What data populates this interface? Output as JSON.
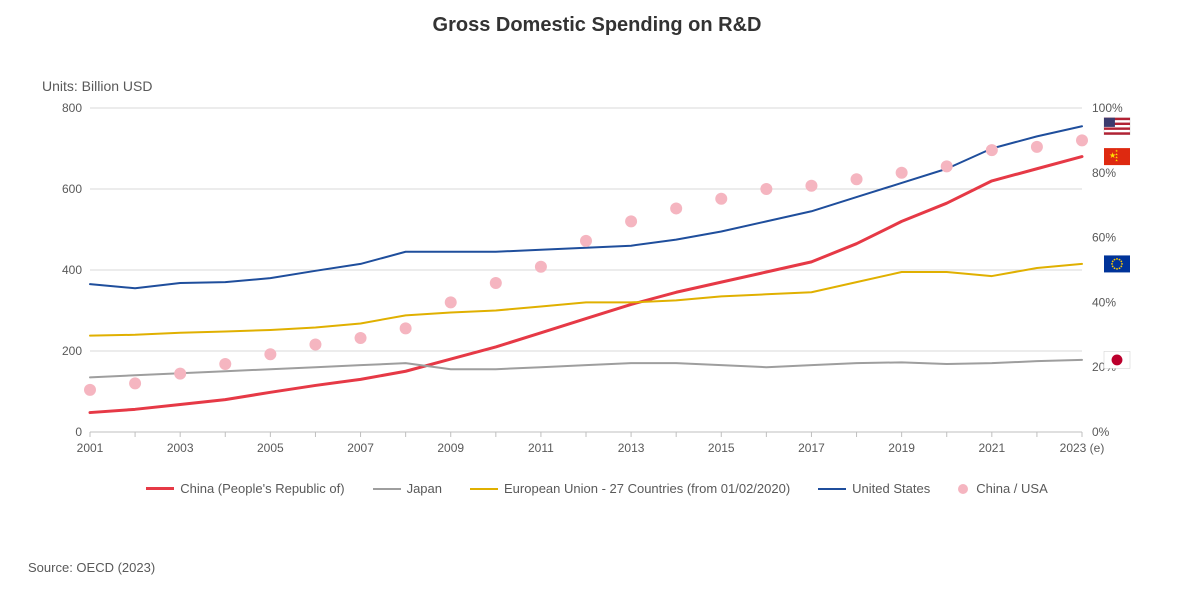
{
  "title": "Gross Domestic Spending on R&D",
  "units_label": "Units: Billion USD",
  "source_label": "Source: OECD (2023)",
  "chart": {
    "type": "line-scatter-dual-axis",
    "background_color": "#ffffff",
    "grid_color": "#d9d9d9",
    "axis_text_color": "#595959",
    "title_fontsize": 20,
    "label_fontsize": 12,
    "x": {
      "categories": [
        "2001",
        "2002",
        "2003",
        "2004",
        "2005",
        "2006",
        "2007",
        "2008",
        "2009",
        "2010",
        "2011",
        "2012",
        "2013",
        "2014",
        "2015",
        "2016",
        "2017",
        "2018",
        "2019",
        "2020",
        "2021",
        "2022",
        "2023 (e)"
      ],
      "tick_every": 2
    },
    "y_left": {
      "label": "Billion USD",
      "min": 0,
      "max": 800,
      "step": 200
    },
    "y_right": {
      "label": "%",
      "min": 0,
      "max": 100,
      "step": 20,
      "suffix": "%"
    },
    "series": [
      {
        "name": "China (People's Republic of)",
        "axis": "left",
        "type": "line",
        "color": "#e63946",
        "width": 3,
        "values": [
          48,
          56,
          68,
          80,
          98,
          115,
          130,
          150,
          180,
          210,
          245,
          280,
          315,
          345,
          370,
          395,
          420,
          465,
          520,
          565,
          620,
          650,
          680
        ]
      },
      {
        "name": "Japan",
        "axis": "left",
        "type": "line",
        "color": "#9e9e9e",
        "width": 2,
        "values": [
          135,
          140,
          145,
          150,
          155,
          160,
          165,
          170,
          155,
          155,
          160,
          165,
          170,
          170,
          165,
          160,
          165,
          170,
          172,
          168,
          170,
          175,
          178
        ]
      },
      {
        "name": "European Union - 27 Countries (from 01/02/2020)",
        "axis": "left",
        "type": "line",
        "color": "#e0b000",
        "width": 2,
        "values": [
          238,
          240,
          245,
          248,
          252,
          258,
          268,
          288,
          295,
          300,
          310,
          320,
          320,
          325,
          335,
          340,
          345,
          370,
          395,
          395,
          385,
          405,
          415
        ]
      },
      {
        "name": "United States",
        "axis": "left",
        "type": "line",
        "color": "#1f4e9c",
        "width": 2,
        "values": [
          365,
          355,
          368,
          370,
          380,
          398,
          415,
          445,
          445,
          445,
          450,
          455,
          460,
          475,
          495,
          520,
          545,
          580,
          615,
          650,
          700,
          730,
          755
        ]
      },
      {
        "name": "China / USA",
        "axis": "right",
        "type": "scatter",
        "color": "#f5b5c0",
        "marker_size": 6,
        "values": [
          13,
          15,
          18,
          21,
          24,
          27,
          29,
          32,
          40,
          46,
          51,
          59,
          65,
          69,
          72,
          75,
          76,
          78,
          80,
          82,
          87,
          88,
          90
        ]
      }
    ],
    "end_markers": [
      {
        "series": "United States",
        "flag": "us"
      },
      {
        "series": "China (People's Republic of)",
        "flag": "cn"
      },
      {
        "series": "European Union - 27 Countries (from 01/02/2020)",
        "flag": "eu"
      },
      {
        "series": "Japan",
        "flag": "jp"
      }
    ]
  },
  "legend": [
    {
      "label": "China (People's Republic of)",
      "type": "line",
      "color": "#e63946",
      "width": 3
    },
    {
      "label": "Japan",
      "type": "line",
      "color": "#9e9e9e",
      "width": 2
    },
    {
      "label": "European Union - 27 Countries (from 01/02/2020)",
      "type": "line",
      "color": "#e0b000",
      "width": 2
    },
    {
      "label": "United States",
      "type": "line",
      "color": "#1f4e9c",
      "width": 2
    },
    {
      "label": "China / USA",
      "type": "dot",
      "color": "#f5b5c0"
    }
  ]
}
